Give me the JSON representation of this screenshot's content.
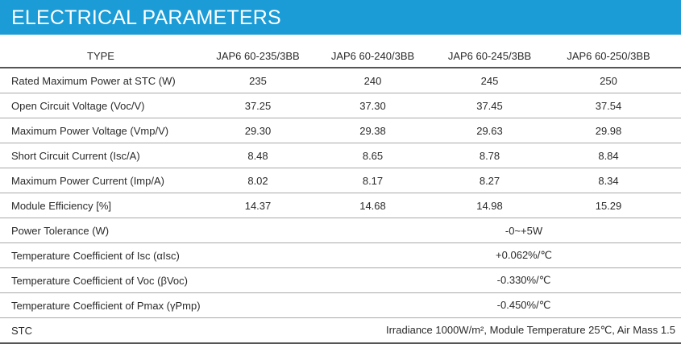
{
  "title": "ELECTRICAL PARAMETERS",
  "header": {
    "type_label": "TYPE",
    "models": [
      "JAP6 60-235/3BB",
      "JAP6 60-240/3BB",
      "JAP6 60-245/3BB",
      "JAP6 60-250/3BB"
    ]
  },
  "rows": [
    {
      "label": "Rated Maximum Power at STC (W)",
      "values": [
        "235",
        "240",
        "245",
        "250"
      ]
    },
    {
      "label": "Open Circuit Voltage (Voc/V)",
      "values": [
        "37.25",
        "37.30",
        "37.45",
        "37.54"
      ]
    },
    {
      "label": "Maximum Power Voltage (Vmp/V)",
      "values": [
        "29.30",
        "29.38",
        "29.63",
        "29.98"
      ]
    },
    {
      "label": "Short Circuit Current (Isc/A)",
      "values": [
        "8.48",
        "8.65",
        "8.78",
        "8.84"
      ]
    },
    {
      "label": "Maximum Power Current (Imp/A)",
      "values": [
        "8.02",
        "8.17",
        "8.27",
        "8.34"
      ]
    },
    {
      "label": "Module Efficiency [%]",
      "values": [
        "14.37",
        "14.68",
        "14.98",
        "15.29"
      ]
    }
  ],
  "spanning_rows": [
    {
      "label": "Power Tolerance (W)",
      "value": "-0~+5W"
    },
    {
      "label": "Temperature Coefficient of Isc (αIsc)",
      "value": "+0.062%/℃"
    },
    {
      "label": "Temperature Coefficient of Voc (βVoc)",
      "value": "-0.330%/℃"
    },
    {
      "label": "Temperature Coefficient of Pmax (γPmp)",
      "value": "-0.450%/℃"
    }
  ],
  "stc": {
    "label": "STC",
    "value": "Irradiance 1000W/m², Module Temperature 25℃, Air Mass 1.5"
  }
}
